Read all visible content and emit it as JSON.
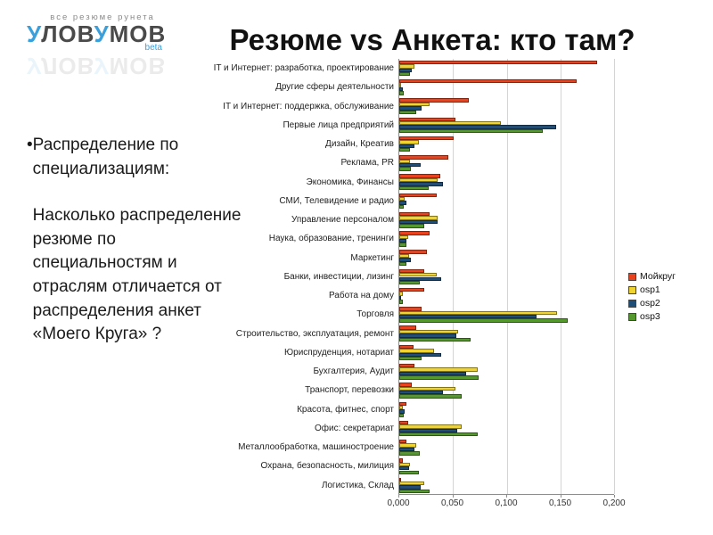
{
  "logo": {
    "tagline": "все резюме рунета",
    "name_parts": [
      {
        "text": "у",
        "blue": true
      },
      {
        "text": "лов",
        "blue": false
      },
      {
        "text": "у",
        "blue": true
      },
      {
        "text": "мов",
        "blue": false
      }
    ],
    "beta": "beta"
  },
  "slide": {
    "title": "Резюме vs Анкета: кто там?",
    "bullet": {
      "dot": "•",
      "line1": "Распределение по специализациям:",
      "line2": "Насколько распределение резюме по специальностям и отраслям отличается от распределения анкет «Моего Круга» ?"
    }
  },
  "chart_data": {
    "type": "bar",
    "orientation": "horizontal",
    "title": "",
    "xlabel": "",
    "ylabel": "",
    "xlim": [
      0,
      0.2
    ],
    "x_ticks": [
      "0,000",
      "0,050",
      "0,100",
      "0,150",
      "0,200"
    ],
    "x_tick_values": [
      0,
      0.05,
      0.1,
      0.15,
      0.2
    ],
    "grid": true,
    "legend_position": "right",
    "categories": [
      "IT и Интернет: разработка, проектирование",
      "Другие сферы деятельности",
      "IT и Интернет: поддержка, обслуживание",
      "Первые лица предприятий",
      "Дизайн, Креатив",
      "Реклама, PR",
      "Экономика, Финансы",
      "СМИ, Телевидение и радио",
      "Управление персоналом",
      "Наука, образование, тренинги",
      "Маркетинг",
      "Банки, инвестиции, лизинг",
      "Работа на дому",
      "Торговля",
      "Строительство, эксплуатация, ремонт",
      "Юриспруденция, нотариат",
      "Бухгалтерия, Аудит",
      "Транспорт, перевозки",
      "Красота, фитнес, спорт",
      "Офис: секретариат",
      "Металлообработка, машиностроение",
      "Охрана, безопасность, милиция",
      "Логистика, Склад"
    ],
    "series": [
      {
        "name": "Мойкруг",
        "color": "#e8431e",
        "values": [
          0.184,
          0.165,
          0.065,
          0.052,
          0.051,
          0.046,
          0.038,
          0.035,
          0.028,
          0.028,
          0.026,
          0.023,
          0.023,
          0.021,
          0.016,
          0.013,
          0.014,
          0.012,
          0.007,
          0.008,
          0.007,
          0.003,
          0.002
        ]
      },
      {
        "name": "osp1",
        "color": "#eed331",
        "values": [
          0.014,
          0.002,
          0.028,
          0.095,
          0.018,
          0.01,
          0.036,
          0.005,
          0.036,
          0.008,
          0.009,
          0.035,
          0.003,
          0.147,
          0.055,
          0.032,
          0.073,
          0.052,
          0.003,
          0.058,
          0.016,
          0.01,
          0.023
        ]
      },
      {
        "name": "osp2",
        "color": "#1f4e79",
        "values": [
          0.012,
          0.003,
          0.021,
          0.146,
          0.014,
          0.02,
          0.041,
          0.007,
          0.036,
          0.007,
          0.011,
          0.039,
          0.002,
          0.128,
          0.053,
          0.039,
          0.062,
          0.041,
          0.005,
          0.054,
          0.014,
          0.009,
          0.02
        ]
      },
      {
        "name": "osp3",
        "color": "#55992e",
        "values": [
          0.01,
          0.004,
          0.016,
          0.134,
          0.01,
          0.011,
          0.027,
          0.004,
          0.023,
          0.007,
          0.007,
          0.019,
          0.003,
          0.157,
          0.066,
          0.021,
          0.074,
          0.058,
          0.004,
          0.073,
          0.019,
          0.018,
          0.028
        ]
      }
    ]
  }
}
